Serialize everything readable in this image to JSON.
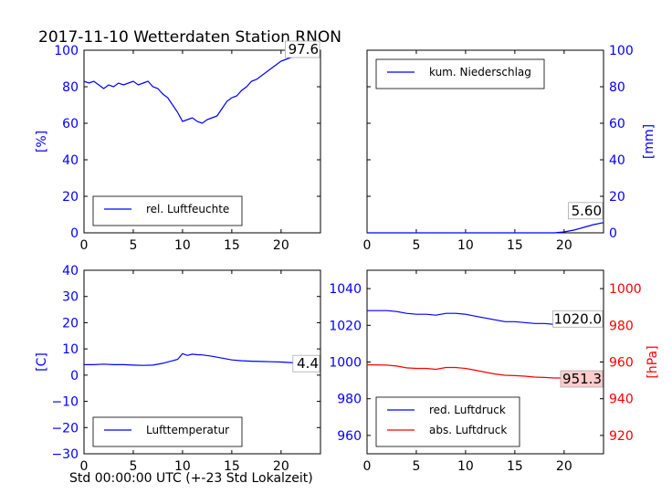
{
  "figure": {
    "title": "2017-11-10 Wetterdaten Station RNON",
    "xcaption": "Std 00:00:00 UTC (+-23 Std Lokalzeit)",
    "colors": {
      "blue": "#0000ff",
      "red": "#ff0000",
      "black": "#000000",
      "grid": "none",
      "annotation_fill": "#ffcccc"
    }
  },
  "chart_data": [
    {
      "type": "line",
      "panel": "top-left",
      "xlim": [
        0,
        24
      ],
      "ylim": [
        0,
        100
      ],
      "xticks": [
        0,
        5,
        10,
        15,
        20
      ],
      "yticks": [
        0,
        20,
        40,
        60,
        80,
        100
      ],
      "ylabel": "[%]",
      "ylabel_color": "#0000ff",
      "grid": false,
      "legend": {
        "position": "lower-left",
        "entries": [
          "rel. Luftfeuchte"
        ]
      },
      "series": [
        {
          "name": "rel. Luftfeuchte",
          "color": "#0000ff",
          "axis": "left",
          "x": [
            0,
            0.5,
            1,
            1.5,
            2,
            2.5,
            3,
            3.5,
            4,
            4.5,
            5,
            5.5,
            6,
            6.5,
            7,
            7.5,
            8,
            8.5,
            9,
            9.5,
            10,
            10.5,
            11,
            11.5,
            12,
            12.5,
            13,
            13.5,
            14,
            14.5,
            15,
            15.5,
            16,
            16.5,
            17,
            17.5,
            18,
            18.5,
            19,
            19.5,
            20,
            20.5,
            21,
            21.5,
            22,
            22.5,
            23,
            23.5,
            24
          ],
          "values": [
            83,
            82,
            83,
            81,
            79,
            81,
            80,
            82,
            81,
            82,
            83,
            81,
            82,
            83,
            80,
            79,
            76,
            74,
            70,
            66,
            61,
            62,
            63,
            61,
            60,
            62,
            63,
            64,
            68,
            72,
            74,
            75,
            78,
            80,
            83,
            84,
            86,
            88,
            90,
            92,
            94,
            95,
            96,
            96.5,
            97,
            97,
            97.3,
            97.5,
            97.6
          ]
        }
      ],
      "annotations": [
        {
          "text": "97.6",
          "x": 24,
          "y": 97.6
        }
      ]
    },
    {
      "type": "line",
      "panel": "top-right",
      "xlim": [
        0,
        24
      ],
      "ylim": [
        0,
        100
      ],
      "xticks": [
        0,
        5,
        10,
        15,
        20
      ],
      "yticks": [
        0,
        20,
        40,
        60,
        80,
        100
      ],
      "ylabel": "[mm]",
      "ylabel_color": "#0000ff",
      "yaxis_side": "right",
      "grid": false,
      "legend": {
        "position": "upper-left",
        "entries": [
          "kum. Niederschlag"
        ]
      },
      "series": [
        {
          "name": "kum. Niederschlag",
          "color": "#0000ff",
          "axis": "right",
          "x": [
            0,
            4,
            8,
            12,
            16,
            19,
            20,
            21,
            22,
            23,
            24
          ],
          "values": [
            0,
            0,
            0,
            0,
            0,
            0,
            0.5,
            1.5,
            3,
            4.5,
            5.6
          ]
        }
      ],
      "annotations": [
        {
          "text": "5.60",
          "x": 24,
          "y": 5.6
        }
      ]
    },
    {
      "type": "line",
      "panel": "bottom-left",
      "xlim": [
        0,
        24
      ],
      "ylim": [
        -30,
        40
      ],
      "xticks": [
        0,
        5,
        10,
        15,
        20
      ],
      "yticks": [
        -30,
        -20,
        -10,
        0,
        10,
        20,
        30,
        40
      ],
      "ylabel": "[C]",
      "ylabel_color": "#0000ff",
      "grid": false,
      "legend": {
        "position": "lower-left",
        "entries": [
          "Lufttemperatur"
        ]
      },
      "series": [
        {
          "name": "Lufttemperatur",
          "color": "#0000ff",
          "axis": "left",
          "x": [
            0,
            1,
            2,
            3,
            4,
            5,
            6,
            7,
            8,
            9,
            9.5,
            10,
            10.5,
            11,
            11.5,
            12,
            13,
            14,
            15,
            16,
            17,
            18,
            19,
            20,
            21,
            22,
            23,
            24
          ],
          "values": [
            4,
            4,
            4.2,
            4,
            4,
            3.8,
            3.7,
            3.8,
            4.5,
            5.5,
            6,
            8.2,
            7.5,
            8,
            7.8,
            7.7,
            7.2,
            6.5,
            5.8,
            5.5,
            5.3,
            5.2,
            5.1,
            5,
            4.8,
            4.6,
            4.5,
            4.4
          ]
        }
      ],
      "annotations": [
        {
          "text": "4.4",
          "x": 24,
          "y": 4.4
        }
      ]
    },
    {
      "type": "line",
      "panel": "bottom-right",
      "xlim": [
        0,
        24
      ],
      "ylim": [
        950,
        1050
      ],
      "ylim_right": [
        910,
        1010
      ],
      "xticks": [
        0,
        5,
        10,
        15,
        20
      ],
      "yticks": [
        960,
        980,
        1000,
        1020,
        1040
      ],
      "yticks_right": [
        920,
        940,
        960,
        980,
        1000
      ],
      "ylabel_right": "[hPa]",
      "ylabel_right_color": "#ff0000",
      "grid": false,
      "legend": {
        "position": "lower-left",
        "entries": [
          "red. Luftdruck",
          "abs. Luftdruck"
        ]
      },
      "series": [
        {
          "name": "red. Luftdruck",
          "color": "#0000ff",
          "axis": "left",
          "x": [
            0,
            2,
            3,
            4,
            5,
            6,
            7,
            8,
            9,
            10,
            11,
            12,
            13,
            14,
            15,
            16,
            17,
            18,
            19,
            20,
            21,
            22,
            23,
            24
          ],
          "values": [
            1028,
            1028,
            1027.5,
            1026.5,
            1026,
            1026,
            1025.5,
            1026.5,
            1026.5,
            1026,
            1025,
            1024,
            1023,
            1022,
            1022,
            1021.5,
            1021,
            1021,
            1020.5,
            1020.5,
            1020,
            1020,
            1020,
            1020
          ]
        },
        {
          "name": "abs. Luftdruck",
          "color": "#ff0000",
          "axis": "right",
          "x": [
            0,
            2,
            3,
            4,
            5,
            6,
            7,
            8,
            9,
            10,
            11,
            12,
            13,
            14,
            15,
            16,
            17,
            18,
            19,
            20,
            21,
            22,
            23,
            24
          ],
          "values": [
            958.5,
            958.3,
            957.8,
            956.8,
            956.5,
            956.5,
            956,
            957,
            957,
            956.5,
            955.5,
            954.5,
            953.5,
            952.8,
            952.6,
            952.3,
            951.8,
            951.6,
            951.3,
            951.3,
            951.3,
            951.3,
            951.3,
            951.3
          ]
        }
      ],
      "annotations": [
        {
          "text": "1020.0",
          "x": 24,
          "y": 1020.0,
          "axis": "left"
        },
        {
          "text": "951.3",
          "x": 24,
          "y": 951.3,
          "axis": "right",
          "fill": "#ffcccc"
        }
      ]
    }
  ]
}
